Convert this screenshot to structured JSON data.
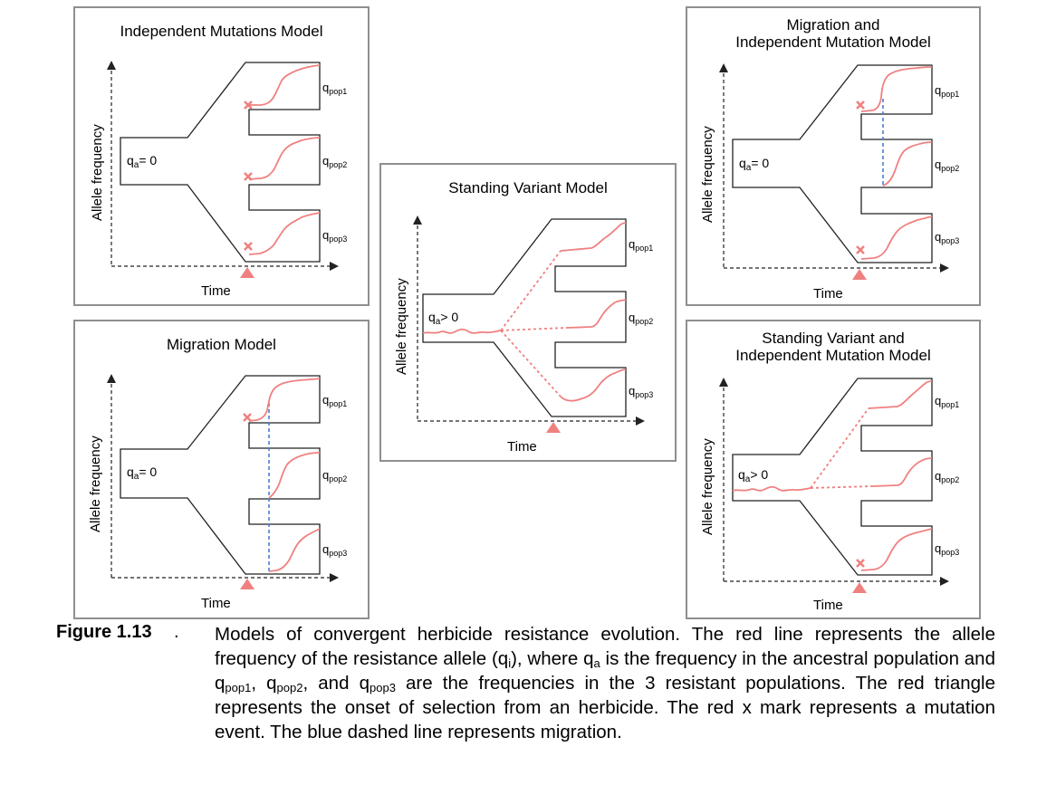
{
  "figure": {
    "label": "Figure 1.13",
    "dot": ".",
    "caption_parts": [
      "Models of convergent herbicide resistance evolution. The red line represents the allele frequency of the resistance allele (q",
      "i",
      "), where q",
      "a",
      " is the frequency in the ancestral population and q",
      "pop1",
      ", q",
      "pop2",
      ", and q",
      "pop3",
      " are the frequencies in the 3 resistant populations. The red triangle represents the onset of selection from an herbicide. The red x mark represents a mutation event. The blue dashed line represents migration."
    ]
  },
  "common": {
    "y_axis": "Allele frequency",
    "x_axis": "Time",
    "q": "q",
    "pop1": "pop1",
    "pop2": "pop2",
    "pop3": "pop3",
    "a": "a",
    "eq0": "= 0",
    "gt0": "> 0"
  },
  "panels": {
    "independent": {
      "title": "Independent Mutations Model"
    },
    "migration": {
      "title": "Migration Model"
    },
    "standing": {
      "title": "Standing Variant Model"
    },
    "mig_indep": {
      "title_line1": "Migration and",
      "title_line2": "Independent Mutation Model"
    },
    "stand_indep": {
      "title_line1": "Standing Variant and",
      "title_line2": "Independent Mutation Model"
    }
  },
  "colors": {
    "frequency_line": "#f08080",
    "triangle": "#f08080",
    "mutation_mark": "#f08080",
    "migration_line": "#4a7fd4",
    "panel_border": "#8f8f8f"
  }
}
